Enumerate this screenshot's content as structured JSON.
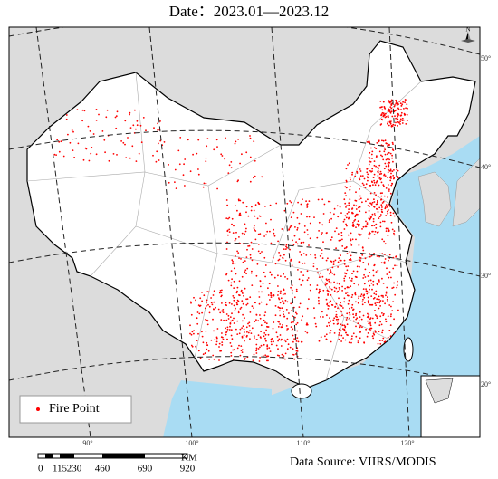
{
  "header": {
    "title": "Date：2023.01—2023.12"
  },
  "legend": {
    "label": "Fire Point"
  },
  "source": "Data Source: VIIRS/MODIS",
  "north": "N",
  "scale_bar": {
    "labels": [
      "0",
      "115",
      "230",
      "460",
      "690",
      "920"
    ],
    "unit": "KM"
  },
  "graticule": {
    "longitudes": [
      "90°",
      "100°",
      "110°",
      "120°"
    ],
    "latitudes": [
      "50°",
      "40°",
      "30°",
      "20°"
    ]
  }
}
